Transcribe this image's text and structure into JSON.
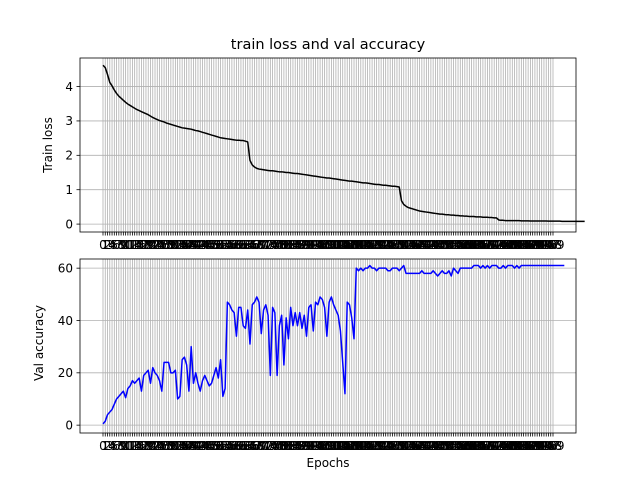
{
  "title": "train loss and val accuracy",
  "chart_data": [
    {
      "type": "line",
      "ylabel": "Train loss",
      "xlabel": "",
      "x_range": [
        0,
        199
      ],
      "ylim": [
        -0.23,
        4.83
      ],
      "yticks": [
        0,
        1,
        2,
        3,
        4
      ],
      "grid": true,
      "line_color": "#000000",
      "x_ticks_every_epoch": true,
      "series": [
        {
          "values": [
            4.62,
            4.55,
            4.35,
            4.12,
            4.02,
            3.9,
            3.8,
            3.72,
            3.66,
            3.6,
            3.54,
            3.49,
            3.45,
            3.41,
            3.37,
            3.33,
            3.3,
            3.27,
            3.24,
            3.21,
            3.18,
            3.14,
            3.1,
            3.07,
            3.04,
            3.01,
            2.99,
            2.97,
            2.94,
            2.92,
            2.9,
            2.88,
            2.86,
            2.84,
            2.82,
            2.8,
            2.79,
            2.78,
            2.77,
            2.76,
            2.74,
            2.72,
            2.71,
            2.69,
            2.67,
            2.65,
            2.63,
            2.61,
            2.59,
            2.57,
            2.55,
            2.53,
            2.51,
            2.5,
            2.49,
            2.48,
            2.47,
            2.46,
            2.45,
            2.44,
            2.44,
            2.43,
            2.43,
            2.41,
            2.39,
            1.85,
            1.72,
            1.66,
            1.62,
            1.6,
            1.59,
            1.58,
            1.57,
            1.56,
            1.55,
            1.55,
            1.54,
            1.53,
            1.52,
            1.52,
            1.51,
            1.5,
            1.5,
            1.49,
            1.48,
            1.47,
            1.47,
            1.46,
            1.45,
            1.44,
            1.43,
            1.42,
            1.41,
            1.4,
            1.39,
            1.38,
            1.37,
            1.36,
            1.35,
            1.34,
            1.34,
            1.33,
            1.32,
            1.31,
            1.3,
            1.29,
            1.28,
            1.27,
            1.26,
            1.25,
            1.25,
            1.24,
            1.23,
            1.22,
            1.21,
            1.2,
            1.2,
            1.19,
            1.18,
            1.17,
            1.16,
            1.15,
            1.15,
            1.14,
            1.13,
            1.13,
            1.12,
            1.11,
            1.1,
            1.1,
            1.09,
            1.08,
            0.68,
            0.57,
            0.52,
            0.48,
            0.46,
            0.44,
            0.42,
            0.4,
            0.38,
            0.37,
            0.36,
            0.35,
            0.34,
            0.33,
            0.32,
            0.31,
            0.3,
            0.29,
            0.29,
            0.28,
            0.27,
            0.27,
            0.26,
            0.26,
            0.25,
            0.25,
            0.24,
            0.24,
            0.23,
            0.23,
            0.22,
            0.22,
            0.22,
            0.21,
            0.21,
            0.21,
            0.2,
            0.2,
            0.2,
            0.19,
            0.19,
            0.18,
            0.18,
            0.12,
            0.11,
            0.11,
            0.1,
            0.1,
            0.1,
            0.1,
            0.1,
            0.1,
            0.1,
            0.095,
            0.095,
            0.095,
            0.095,
            0.09,
            0.09,
            0.09,
            0.09,
            0.09,
            0.09,
            0.09,
            0.09,
            0.085,
            0.085,
            0.085,
            0.085,
            0.085,
            0.085,
            0.08,
            0.08,
            0.08,
            0.08,
            0.08,
            0.08,
            0.08,
            0.08,
            0.08,
            0.08,
            0.08
          ]
        }
      ]
    },
    {
      "type": "line",
      "xlabel": "Epochs",
      "ylabel": "Val accuracy",
      "x_range": [
        0,
        199
      ],
      "ylim": [
        -3.0,
        63.5
      ],
      "yticks": [
        0,
        20,
        40,
        60
      ],
      "grid": true,
      "line_color": "#0000ff",
      "x_ticks_every_epoch": true,
      "x_tick_labels_shown": [
        "0",
        "1",
        "2",
        "3",
        "4",
        "5",
        "6",
        "7",
        "8",
        "9"
      ],
      "series": [
        {
          "values": [
            0.5,
            1.5,
            4,
            5,
            6,
            8,
            10,
            11,
            12,
            13,
            10.5,
            14,
            15,
            17,
            16,
            17,
            18,
            13,
            19,
            20,
            21,
            16,
            22,
            20,
            19,
            17,
            13,
            24,
            24,
            24,
            20,
            20,
            21,
            10,
            11,
            25,
            26,
            23,
            13,
            30,
            16,
            20,
            16,
            13,
            17,
            19,
            17,
            15,
            16,
            19,
            22,
            18,
            25,
            11,
            14,
            47,
            46,
            44,
            43,
            34,
            45,
            45,
            38,
            37,
            44,
            31,
            46,
            47,
            49,
            47,
            35,
            44,
            46,
            42,
            19,
            45,
            43,
            19,
            38,
            42,
            23,
            41,
            33,
            45,
            38,
            43,
            38,
            43,
            37,
            42,
            34,
            45,
            46,
            36,
            47,
            46,
            49,
            48,
            45,
            34,
            47,
            49,
            46,
            44,
            42,
            36,
            24,
            12,
            47,
            46,
            41,
            33,
            60,
            59,
            60,
            59,
            60,
            60,
            61,
            60,
            60,
            59,
            60,
            60,
            60,
            60,
            59,
            59,
            60,
            60,
            60,
            59,
            60,
            61,
            58,
            58,
            58,
            58,
            58,
            58,
            58,
            59,
            58,
            58,
            58,
            58,
            59,
            58,
            57,
            58,
            59,
            58,
            58,
            59,
            57,
            60,
            59,
            58,
            60,
            60,
            60,
            60,
            60,
            60,
            61,
            61,
            61,
            60,
            61,
            60,
            61,
            60,
            61,
            61,
            61,
            60,
            60,
            61,
            60,
            61,
            61,
            61,
            60,
            61,
            60,
            61,
            61,
            61,
            61,
            61,
            61,
            61,
            61,
            61,
            61,
            61,
            61,
            61,
            61,
            61,
            61,
            61,
            61,
            61,
            61
          ]
        }
      ]
    }
  ]
}
